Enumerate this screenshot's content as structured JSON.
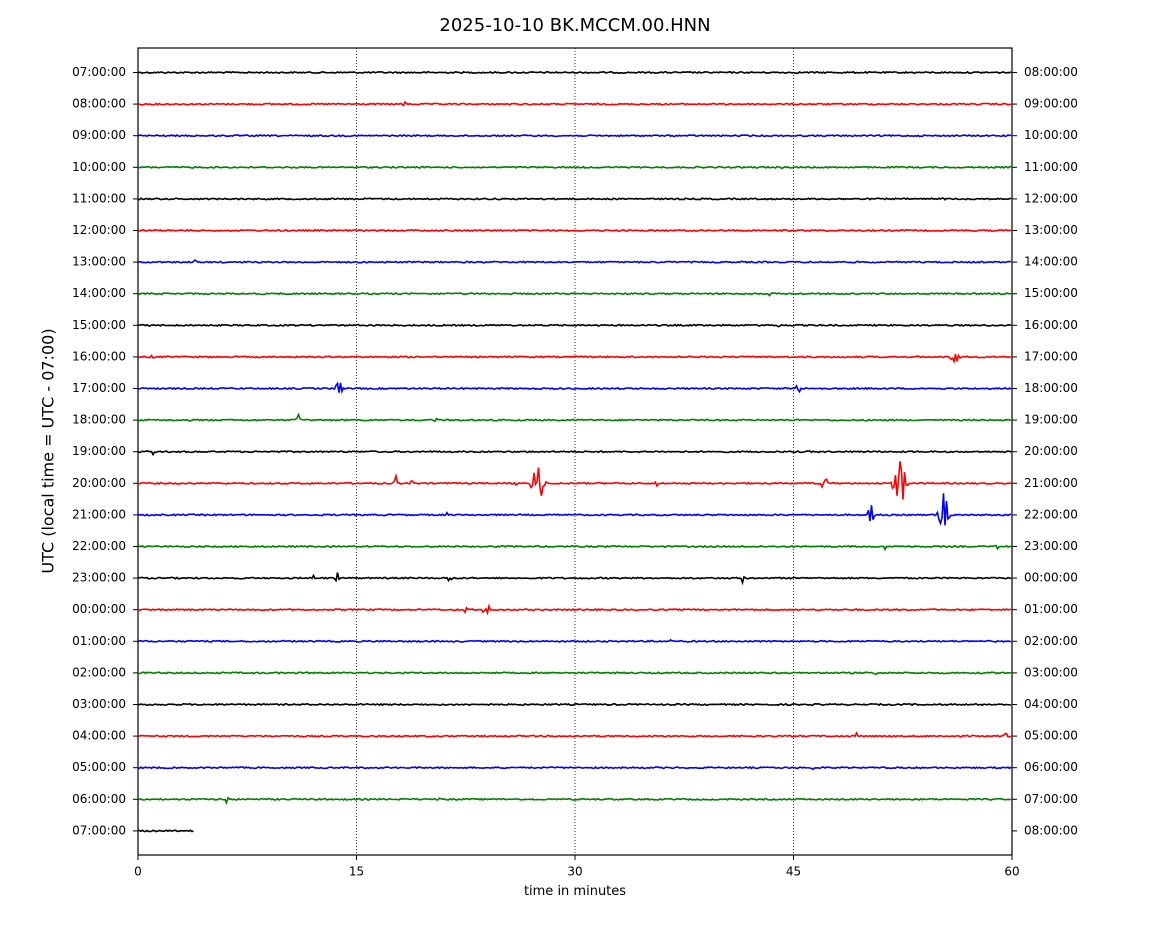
{
  "chart_data": {
    "type": "line",
    "title": "2025-10-10 BK.MCCM.00.HNN",
    "xlabel": "time in minutes",
    "ylabel": "UTC (local time = UTC - 07:00)",
    "xlim": [
      0,
      60
    ],
    "x_ticks": [
      "0",
      "15",
      "30",
      "45",
      "60"
    ],
    "x_tick_values": [
      0,
      15,
      30,
      45,
      60
    ],
    "grid": "vertical dotted lines at 15, 30, 45",
    "colors": [
      "#000000",
      "#ff0000",
      "#0000ff",
      "#008000"
    ],
    "left_labels": [
      "07:00:00",
      "08:00:00",
      "09:00:00",
      "10:00:00",
      "11:00:00",
      "12:00:00",
      "13:00:00",
      "14:00:00",
      "15:00:00",
      "16:00:00",
      "17:00:00",
      "18:00:00",
      "19:00:00",
      "20:00:00",
      "21:00:00",
      "22:00:00",
      "23:00:00",
      "00:00:00",
      "01:00:00",
      "02:00:00",
      "03:00:00",
      "04:00:00",
      "05:00:00",
      "06:00:00",
      "07:00:00"
    ],
    "right_labels": [
      "08:00:00",
      "09:00:00",
      "10:00:00",
      "11:00:00",
      "12:00:00",
      "13:00:00",
      "14:00:00",
      "15:00:00",
      "16:00:00",
      "17:00:00",
      "18:00:00",
      "19:00:00",
      "20:00:00",
      "21:00:00",
      "22:00:00",
      "23:00:00",
      "00:00:00",
      "01:00:00",
      "02:00:00",
      "03:00:00",
      "04:00:00",
      "05:00:00",
      "06:00:00",
      "07:00:00",
      "08:00:00"
    ],
    "trace_end_minutes": [
      60,
      60,
      60,
      60,
      60,
      60,
      60,
      60,
      60,
      60,
      60,
      60,
      60,
      60,
      60,
      60,
      60,
      60,
      60,
      60,
      60,
      60,
      60,
      60,
      3.9
    ],
    "events": [
      {
        "trace": 1,
        "minute": 18.3,
        "amp": 0.3
      },
      {
        "trace": 3,
        "minute": 44.3,
        "amp": 0.3
      },
      {
        "trace": 4,
        "minute": 55.3,
        "amp": 0.2
      },
      {
        "trace": 6,
        "minute": 3.9,
        "amp": 0.2
      },
      {
        "trace": 7,
        "minute": 43.4,
        "amp": 0.3
      },
      {
        "trace": 8,
        "minute": 33.0,
        "amp": 0.3
      },
      {
        "trace": 8,
        "minute": 44.0,
        "amp": 0.2
      },
      {
        "trace": 9,
        "minute": 56.1,
        "amp": 1.0
      },
      {
        "trace": 9,
        "minute": 1.0,
        "amp": 0.3
      },
      {
        "trace": 10,
        "minute": 13.8,
        "amp": 0.8
      },
      {
        "trace": 10,
        "minute": 45.3,
        "amp": 0.6
      },
      {
        "trace": 11,
        "minute": 11.0,
        "amp": 0.6
      },
      {
        "trace": 11,
        "minute": 20.5,
        "amp": 0.5
      },
      {
        "trace": 12,
        "minute": 1.0,
        "amp": 0.3
      },
      {
        "trace": 13,
        "minute": 17.7,
        "amp": 0.6
      },
      {
        "trace": 13,
        "minute": 18.8,
        "amp": 0.4
      },
      {
        "trace": 13,
        "minute": 26.0,
        "amp": 0.4
      },
      {
        "trace": 13,
        "minute": 27.5,
        "amp": 1.8
      },
      {
        "trace": 13,
        "minute": 35.6,
        "amp": 0.4
      },
      {
        "trace": 13,
        "minute": 47.1,
        "amp": 0.9
      },
      {
        "trace": 13,
        "minute": 52.3,
        "amp": 1.8
      },
      {
        "trace": 14,
        "minute": 21.2,
        "amp": 0.3
      },
      {
        "trace": 14,
        "minute": 50.3,
        "amp": 0.9
      },
      {
        "trace": 14,
        "minute": 55.3,
        "amp": 1.6
      },
      {
        "trace": 15,
        "minute": 51.3,
        "amp": 0.3
      },
      {
        "trace": 15,
        "minute": 59.0,
        "amp": 0.4
      },
      {
        "trace": 16,
        "minute": 12.0,
        "amp": 0.4
      },
      {
        "trace": 16,
        "minute": 13.7,
        "amp": 0.5
      },
      {
        "trace": 16,
        "minute": 21.4,
        "amp": 0.5
      },
      {
        "trace": 16,
        "minute": 41.5,
        "amp": 0.4
      },
      {
        "trace": 17,
        "minute": 22.5,
        "amp": 0.4
      },
      {
        "trace": 17,
        "minute": 23.9,
        "amp": 0.8
      },
      {
        "trace": 18,
        "minute": 36.5,
        "amp": 0.3
      },
      {
        "trace": 19,
        "minute": 50.6,
        "amp": 0.3
      },
      {
        "trace": 20,
        "minute": 26.3,
        "amp": 0.2
      },
      {
        "trace": 21,
        "minute": 49.4,
        "amp": 0.4
      },
      {
        "trace": 21,
        "minute": 59.6,
        "amp": 0.3
      },
      {
        "trace": 22,
        "minute": 46.3,
        "amp": 0.2
      },
      {
        "trace": 23,
        "minute": 6.1,
        "amp": 0.4
      },
      {
        "trace": 23,
        "minute": 20.8,
        "amp": 0.4
      }
    ]
  }
}
